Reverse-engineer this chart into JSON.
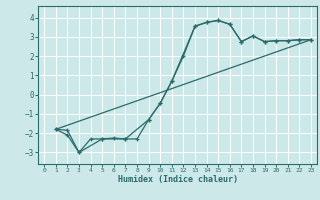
{
  "xlabel": "Humidex (Indice chaleur)",
  "ylabel": "",
  "bg_color": "#cce8e8",
  "line_color": "#2a6b6b",
  "grid_color": "#ffffff",
  "xlim": [
    -0.5,
    23.5
  ],
  "ylim": [
    -3.6,
    4.6
  ],
  "yticks": [
    -3,
    -2,
    -1,
    0,
    1,
    2,
    3,
    4
  ],
  "xticks": [
    0,
    1,
    2,
    3,
    4,
    5,
    6,
    7,
    8,
    9,
    10,
    11,
    12,
    13,
    14,
    15,
    16,
    17,
    18,
    19,
    20,
    21,
    22,
    23
  ],
  "line1_x": [
    1,
    2,
    3,
    4,
    5,
    6,
    7,
    8,
    9,
    10,
    11,
    12,
    13,
    14,
    15,
    16,
    17,
    18,
    19,
    20,
    21,
    22,
    23
  ],
  "line1_y": [
    -1.8,
    -2.1,
    -3.0,
    -2.3,
    -2.3,
    -2.25,
    -2.3,
    -2.3,
    -1.3,
    -0.45,
    0.7,
    2.0,
    3.55,
    3.75,
    3.85,
    3.65,
    2.75,
    3.05,
    2.75,
    2.8,
    2.8,
    2.85,
    2.85
  ],
  "line2_x": [
    1,
    2,
    3,
    5,
    7,
    9,
    10,
    11,
    13,
    14,
    15,
    16,
    17,
    18,
    19,
    20,
    21,
    22,
    23
  ],
  "line2_y": [
    -1.8,
    -1.85,
    -3.0,
    -2.3,
    -2.3,
    -1.3,
    -0.45,
    0.7,
    3.55,
    3.75,
    3.85,
    3.65,
    2.75,
    3.05,
    2.75,
    2.8,
    2.8,
    2.85,
    2.85
  ],
  "line3_x": [
    1,
    23
  ],
  "line3_y": [
    -1.8,
    2.85
  ]
}
